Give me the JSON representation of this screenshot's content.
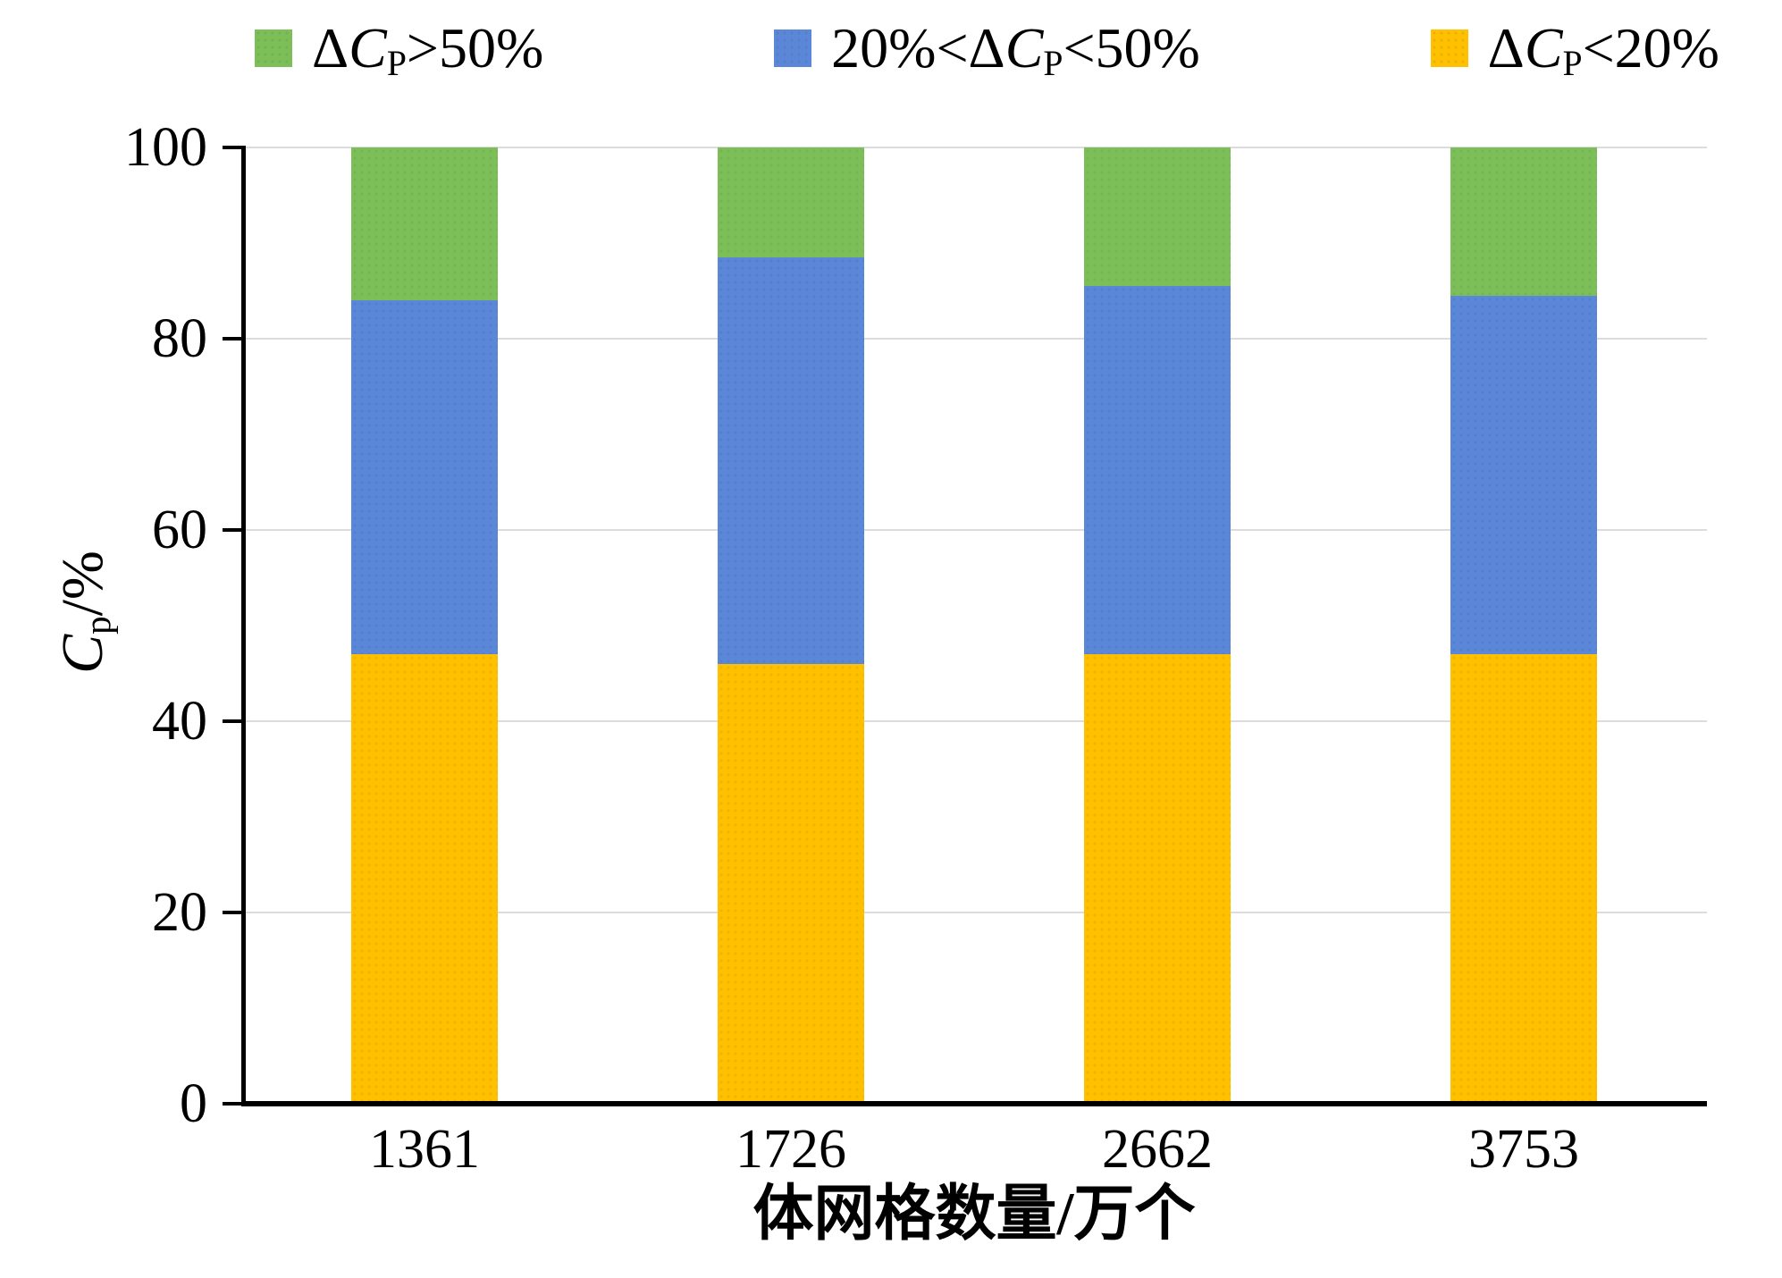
{
  "chart_data": {
    "type": "bar",
    "subtype": "stacked",
    "categories": [
      "1361",
      "1726",
      "2662",
      "3753"
    ],
    "series": [
      {
        "name": "ΔCP<20%",
        "color": "#FFC000",
        "values": [
          47,
          46,
          47,
          47
        ]
      },
      {
        "name": "20%<ΔCP<50%",
        "color": "#5B87D8",
        "values": [
          37,
          42.5,
          38.5,
          37.5
        ]
      },
      {
        "name": "ΔCP>50%",
        "color": "#7CBE58",
        "values": [
          16,
          11.5,
          14.5,
          15.5
        ]
      }
    ],
    "title": "",
    "xlabel": "体网格数量/万个",
    "ylabel": "Cp/%",
    "ylim": [
      0,
      100
    ],
    "yticks": [
      0,
      20,
      40,
      60,
      80,
      100
    ],
    "grid": true,
    "legend_position": "top",
    "bar_width_fraction": 0.4
  },
  "legend": {
    "items": [
      {
        "color": "#7CBE58",
        "text": "ΔCP>50%",
        "segments": [
          {
            "t": "Δ"
          },
          {
            "t": "C",
            "i": true
          },
          {
            "t": "P",
            "sub": true
          },
          {
            "t": ">50%"
          }
        ]
      },
      {
        "color": "#5B87D8",
        "text": "20%<ΔCP<50%",
        "segments": [
          {
            "t": "20%<"
          },
          {
            "t": "Δ"
          },
          {
            "t": "C",
            "i": true
          },
          {
            "t": "P",
            "sub": true
          },
          {
            "t": "<50%"
          }
        ]
      },
      {
        "color": "#FFC000",
        "text": "ΔCP<20%",
        "segments": [
          {
            "t": "Δ"
          },
          {
            "t": "C",
            "i": true
          },
          {
            "t": "P",
            "sub": true
          },
          {
            "t": "<20%"
          }
        ]
      }
    ]
  },
  "y_axis": {
    "title_text": "Cp/%",
    "title_segments": [
      {
        "t": "C",
        "i": true
      },
      {
        "t": "p",
        "sub": true
      },
      {
        "t": "/%"
      }
    ],
    "tick_labels": [
      "0",
      "20",
      "40",
      "60",
      "80",
      "100"
    ]
  },
  "x_axis": {
    "title": "体网格数量/万个",
    "tick_labels": [
      "1361",
      "1726",
      "2662",
      "3753"
    ]
  },
  "colors": {
    "background": "#FFFFFF",
    "grid": "#DCDCDC",
    "axis": "#000000",
    "green": "#7CBE58",
    "blue": "#5B87D8",
    "yellow": "#FFC000"
  }
}
